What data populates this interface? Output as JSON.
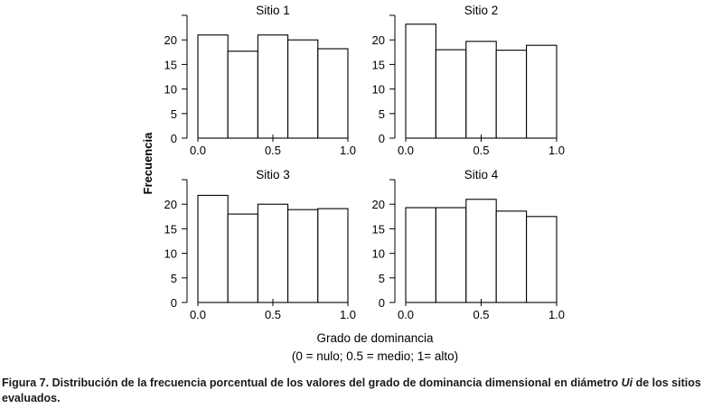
{
  "figure": {
    "ylabel": "Frecuencia",
    "xlabel_line1": "Grado de dominancia",
    "xlabel_line2": "(0 = nulo; 0.5 = medio; 1= alto)"
  },
  "caption": {
    "part1": "Figura 7. Distribución de la frecuencia porcentual de los valores del grado de dominancia dimensional en diámetro ",
    "italic": "Ui",
    "part2": " de los sitios evaluados."
  },
  "colors": {
    "bar_fill": "#ffffff",
    "bar_stroke": "#000000",
    "axis": "#000000"
  },
  "chart_data": [
    {
      "type": "bar",
      "title": "Sitio 1",
      "bin_edges": [
        0.0,
        0.2,
        0.4,
        0.6,
        0.8,
        1.0
      ],
      "values": [
        21,
        17.7,
        21,
        20,
        18.2
      ],
      "xticks": [
        "0.0",
        "0.5",
        "1.0"
      ],
      "yticks": [
        "0",
        "5",
        "10",
        "15",
        "20"
      ],
      "ylim": [
        0,
        25
      ],
      "grid": false
    },
    {
      "type": "bar",
      "title": "Sitio 2",
      "bin_edges": [
        0.0,
        0.2,
        0.4,
        0.6,
        0.8,
        1.0
      ],
      "values": [
        23.2,
        18,
        19.7,
        17.9,
        18.9
      ],
      "xticks": [
        "0.0",
        "0.5",
        "1.0"
      ],
      "yticks": [
        "0",
        "5",
        "10",
        "15",
        "20"
      ],
      "ylim": [
        0,
        25
      ],
      "grid": false
    },
    {
      "type": "bar",
      "title": "Sitio 3",
      "bin_edges": [
        0.0,
        0.2,
        0.4,
        0.6,
        0.8,
        1.0
      ],
      "values": [
        21.8,
        18,
        20,
        18.9,
        19.1
      ],
      "xticks": [
        "0.0",
        "0.5",
        "1.0"
      ],
      "yticks": [
        "0",
        "5",
        "10",
        "15",
        "20"
      ],
      "ylim": [
        0,
        25
      ],
      "grid": false
    },
    {
      "type": "bar",
      "title": "Sitio 4",
      "bin_edges": [
        0.0,
        0.2,
        0.4,
        0.6,
        0.8,
        1.0
      ],
      "values": [
        19.3,
        19.3,
        21,
        18.6,
        17.5
      ],
      "xticks": [
        "0.0",
        "0.5",
        "1.0"
      ],
      "yticks": [
        "0",
        "5",
        "10",
        "15",
        "20"
      ],
      "ylim": [
        0,
        25
      ],
      "grid": false
    }
  ]
}
